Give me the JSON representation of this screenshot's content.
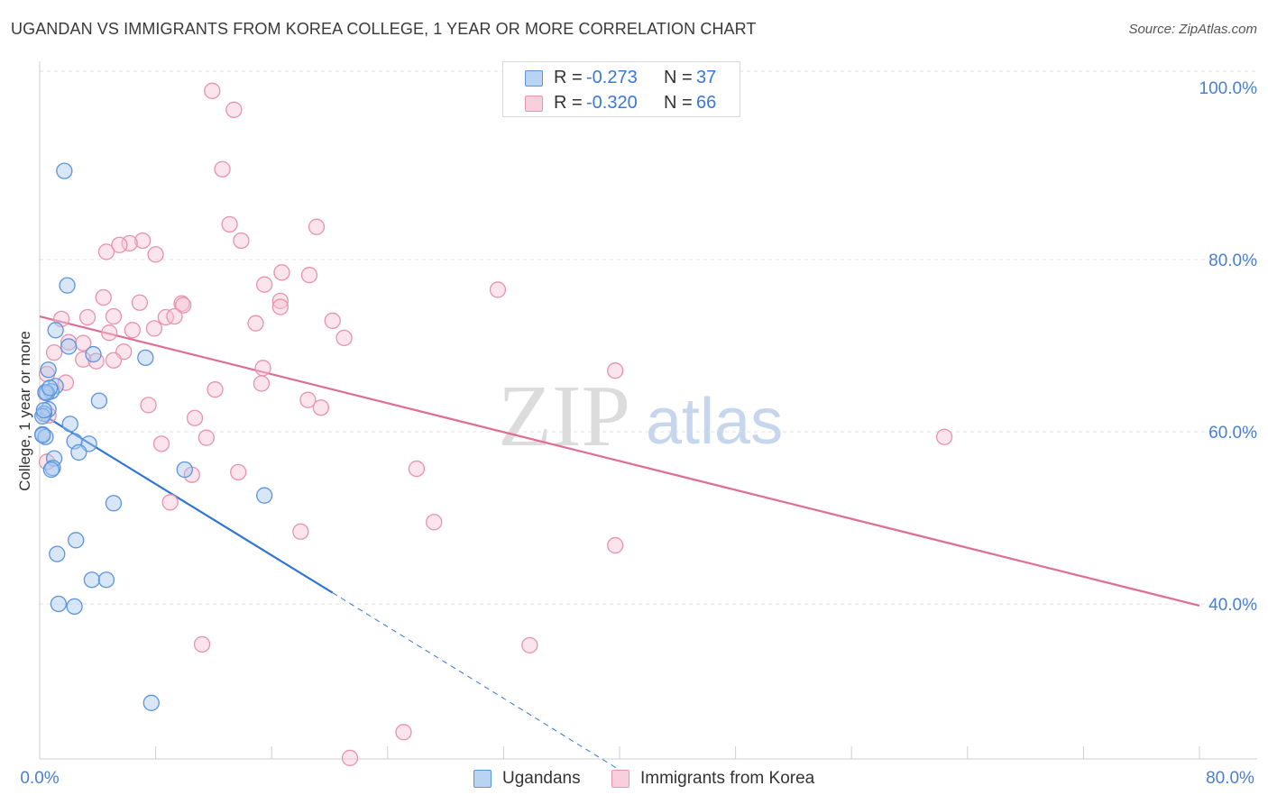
{
  "title": "UGANDAN VS IMMIGRANTS FROM KOREA COLLEGE, 1 YEAR OR MORE CORRELATION CHART",
  "source": "Source: ZipAtlas.com",
  "watermark": {
    "zip": "ZIP",
    "atlas": "atlas"
  },
  "colors": {
    "blue_fill": "#a9c8f0",
    "blue_stroke": "#5b95dd",
    "blue_line": "#3176d2",
    "pink_fill": "#f7c4d3",
    "pink_stroke": "#e892ad",
    "pink_line": "#e06d96",
    "accent_text": "#3a78d6"
  },
  "stats": [
    {
      "r_label": "R =",
      "r_value": "-0.273",
      "n_label": "N =",
      "n_value": "37"
    },
    {
      "r_label": "R =",
      "r_value": "-0.320",
      "n_label": "N =",
      "n_value": "66"
    }
  ],
  "legend": [
    {
      "name": "Ugandans",
      "icon": "blue-square"
    },
    {
      "name": "Immigrants from Korea",
      "icon": "pink-square"
    }
  ],
  "chart_data": {
    "type": "scatter",
    "title": "UGANDAN VS IMMIGRANTS FROM KOREA COLLEGE, 1 YEAR OR MORE CORRELATION CHART",
    "xlabel": "",
    "ylabel": "College, 1 year or more",
    "xlim": [
      0,
      80
    ],
    "ylim": [
      20,
      102
    ],
    "x_tick_labels": [
      "0.0%",
      "80.0%"
    ],
    "y_ticks": [
      100,
      80,
      60,
      40
    ],
    "y_tick_labels": [
      "100.0%",
      "80.0%",
      "60.0%",
      "40.0%"
    ],
    "grid": true,
    "legend_position": "bottom-center",
    "series": [
      {
        "name": "Ugandans",
        "color": "blue",
        "r": -0.273,
        "n": 37,
        "trend": {
          "x0": 0,
          "y0": 62.2,
          "x1": 20.2,
          "y1": 41.3,
          "dashed_to_x": 40.2,
          "dashed_to_y": 20.5
        },
        "points": [
          [
            1.7,
            90.3
          ],
          [
            1.9,
            77.0
          ],
          [
            1.1,
            71.8
          ],
          [
            2.0,
            69.9
          ],
          [
            3.7,
            69.0
          ],
          [
            7.3,
            68.6
          ],
          [
            0.6,
            67.2
          ],
          [
            1.1,
            65.3
          ],
          [
            0.8,
            64.7
          ],
          [
            0.5,
            64.5
          ],
          [
            4.1,
            63.6
          ],
          [
            0.6,
            62.6
          ],
          [
            0.3,
            62.1
          ],
          [
            0.2,
            61.8
          ],
          [
            2.1,
            60.9
          ],
          [
            0.2,
            59.7
          ],
          [
            0.4,
            59.4
          ],
          [
            2.4,
            58.9
          ],
          [
            3.4,
            58.6
          ],
          [
            2.7,
            57.6
          ],
          [
            1.0,
            56.9
          ],
          [
            0.9,
            55.8
          ],
          [
            0.8,
            55.6
          ],
          [
            10.0,
            55.6
          ],
          [
            5.1,
            51.7
          ],
          [
            15.5,
            52.6
          ],
          [
            2.5,
            47.4
          ],
          [
            1.2,
            45.8
          ],
          [
            3.6,
            42.8
          ],
          [
            4.6,
            42.8
          ],
          [
            1.3,
            40.0
          ],
          [
            2.4,
            39.7
          ],
          [
            7.7,
            28.5
          ],
          [
            0.4,
            64.6
          ],
          [
            0.3,
            62.5
          ],
          [
            0.2,
            59.6
          ],
          [
            0.7,
            65.1
          ]
        ]
      },
      {
        "name": "Immigrants from Korea",
        "color": "pink",
        "r": -0.32,
        "n": 66,
        "trend": {
          "x0": 0,
          "y0": 73.4,
          "x1": 80,
          "y1": 39.8
        },
        "points": [
          [
            11.9,
            99.6
          ],
          [
            13.4,
            97.4
          ],
          [
            12.6,
            90.5
          ],
          [
            13.1,
            84.1
          ],
          [
            19.1,
            83.8
          ],
          [
            13.9,
            82.2
          ],
          [
            7.1,
            82.2
          ],
          [
            6.2,
            81.9
          ],
          [
            5.5,
            81.7
          ],
          [
            4.6,
            80.9
          ],
          [
            8.0,
            80.6
          ],
          [
            15.5,
            77.1
          ],
          [
            16.7,
            78.5
          ],
          [
            18.6,
            78.2
          ],
          [
            31.6,
            76.5
          ],
          [
            4.4,
            75.6
          ],
          [
            6.9,
            75.0
          ],
          [
            9.8,
            74.9
          ],
          [
            9.9,
            74.7
          ],
          [
            16.6,
            75.2
          ],
          [
            16.6,
            74.5
          ],
          [
            3.3,
            73.3
          ],
          [
            5.1,
            73.4
          ],
          [
            1.5,
            73.1
          ],
          [
            8.7,
            73.3
          ],
          [
            9.3,
            73.4
          ],
          [
            14.9,
            72.6
          ],
          [
            20.2,
            72.9
          ],
          [
            7.9,
            72.0
          ],
          [
            6.4,
            71.8
          ],
          [
            4.8,
            71.5
          ],
          [
            21.0,
            70.9
          ],
          [
            2.0,
            70.4
          ],
          [
            3.0,
            70.3
          ],
          [
            1.0,
            69.2
          ],
          [
            5.8,
            69.3
          ],
          [
            3.0,
            68.4
          ],
          [
            5.1,
            68.3
          ],
          [
            3.9,
            68.2
          ],
          [
            0.5,
            66.7
          ],
          [
            15.4,
            67.4
          ],
          [
            39.7,
            67.1
          ],
          [
            1.8,
            65.7
          ],
          [
            15.3,
            65.6
          ],
          [
            12.1,
            64.9
          ],
          [
            0.4,
            64.5
          ],
          [
            18.5,
            63.7
          ],
          [
            7.5,
            63.1
          ],
          [
            19.4,
            62.8
          ],
          [
            0.6,
            61.9
          ],
          [
            10.7,
            61.6
          ],
          [
            11.5,
            59.3
          ],
          [
            62.4,
            59.4
          ],
          [
            8.4,
            58.6
          ],
          [
            26.0,
            55.7
          ],
          [
            13.7,
            55.3
          ],
          [
            10.5,
            55.0
          ],
          [
            0.5,
            56.5
          ],
          [
            9.0,
            51.8
          ],
          [
            27.2,
            49.5
          ],
          [
            18.0,
            48.4
          ],
          [
            39.7,
            46.8
          ],
          [
            11.2,
            35.3
          ],
          [
            33.8,
            35.2
          ],
          [
            25.1,
            25.1
          ],
          [
            21.4,
            22.1
          ]
        ]
      }
    ]
  }
}
